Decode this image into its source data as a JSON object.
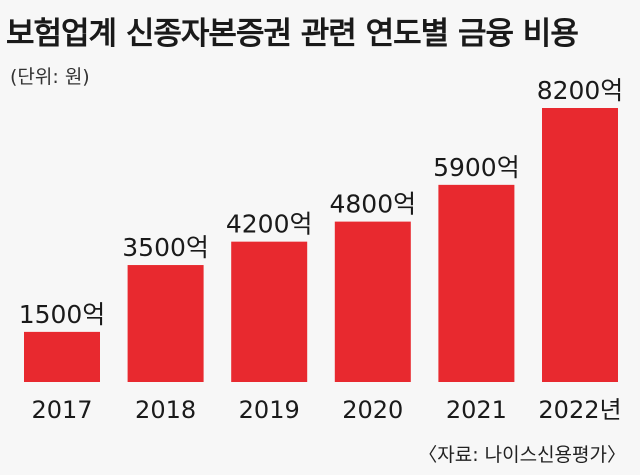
{
  "chart_data": {
    "type": "bar",
    "title": "보험업계 신종자본증권 관련 연도별 금융 비용",
    "unit_label": "(단위: 원)",
    "categories": [
      "2017",
      "2018",
      "2019",
      "2020",
      "2021",
      "2022년"
    ],
    "values": [
      1500,
      3500,
      4200,
      4800,
      5900,
      8200
    ],
    "value_labels": [
      "1500억",
      "3500억",
      "4200억",
      "4800억",
      "5900억",
      "8200억"
    ],
    "bar_color": "#e8292f",
    "grid": false,
    "source": "〈자료: 나이스신용평가〉"
  }
}
